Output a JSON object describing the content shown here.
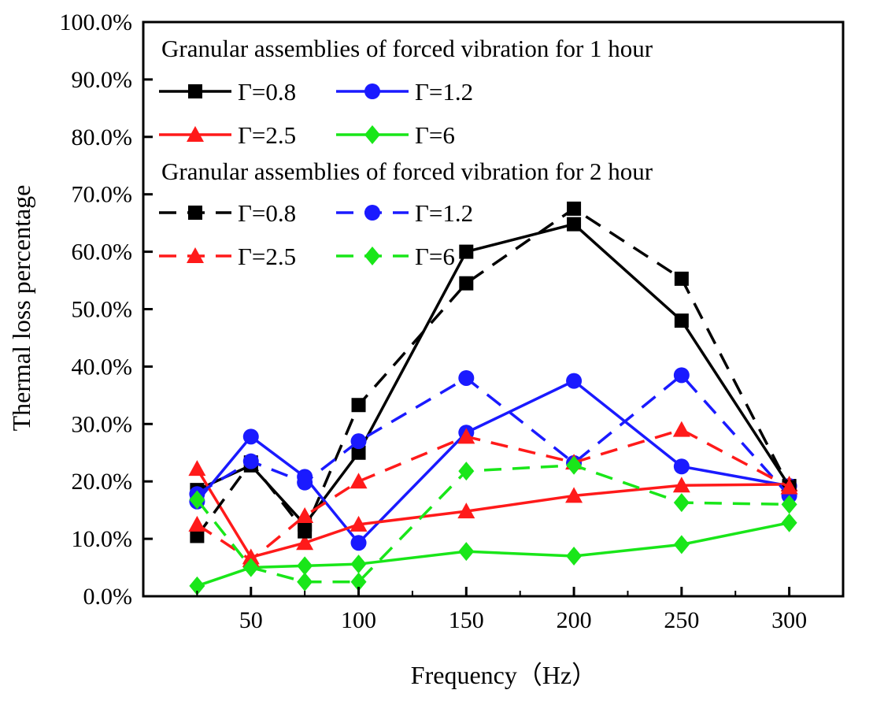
{
  "chart_data": {
    "type": "line",
    "xlabel": "Frequency（Hz）",
    "ylabel": "Thermal loss percentage",
    "x": [
      25,
      50,
      75,
      100,
      150,
      200,
      250,
      300
    ],
    "xlim": [
      0,
      325
    ],
    "ylim": [
      0,
      100
    ],
    "xticks": [
      50,
      100,
      150,
      200,
      250,
      300
    ],
    "xtick_labels": [
      "50",
      "100",
      "150",
      "200",
      "250",
      "300"
    ],
    "yticks": [
      0,
      10,
      20,
      30,
      40,
      50,
      60,
      70,
      80,
      90,
      100
    ],
    "ytick_labels": [
      "0.0%",
      "10.0%",
      "20.0%",
      "30.0%",
      "40.0%",
      "50.0%",
      "60.0%",
      "70.0%",
      "80.0%",
      "90.0%",
      "100.0%"
    ],
    "legend_groups": [
      {
        "heading": "Granular assemblies of forced vibration for 1 hour"
      },
      {
        "heading": "Granular assemblies of forced vibration for 2 hour"
      }
    ],
    "series": [
      {
        "name": "Γ=0.8",
        "group": 0,
        "dash": "solid",
        "color": "#000000",
        "marker": "square",
        "values": [
          18.5,
          22.8,
          12.5,
          25.0,
          60.0,
          64.8,
          48.0,
          19.2
        ]
      },
      {
        "name": "Γ=1.2",
        "group": 0,
        "dash": "solid",
        "color": "#1a1aff",
        "marker": "circle",
        "values": [
          16.5,
          27.8,
          20.8,
          9.3,
          28.5,
          37.5,
          22.6,
          19.2
        ]
      },
      {
        "name": "Γ=2.5",
        "group": 0,
        "dash": "solid",
        "color": "#ff1a1a",
        "marker": "triangle",
        "values": [
          22.2,
          6.8,
          9.3,
          12.5,
          14.8,
          17.5,
          19.3,
          19.5
        ]
      },
      {
        "name": "Γ=6",
        "group": 0,
        "dash": "solid",
        "color": "#19e619",
        "marker": "diamond",
        "values": [
          1.8,
          5.0,
          5.3,
          5.6,
          7.8,
          7.0,
          9.0,
          12.8
        ]
      },
      {
        "name": "Γ=0.8",
        "group": 1,
        "dash": "dashed",
        "color": "#000000",
        "marker": "square",
        "values": [
          10.5,
          23.3,
          11.3,
          33.3,
          54.5,
          67.5,
          55.3,
          19.0
        ]
      },
      {
        "name": "Γ=1.2",
        "group": 1,
        "dash": "dashed",
        "color": "#1a1aff",
        "marker": "circle",
        "values": [
          17.8,
          23.5,
          19.8,
          27.0,
          38.0,
          23.2,
          38.5,
          17.5
        ]
      },
      {
        "name": "Γ=2.5",
        "group": 1,
        "dash": "dashed",
        "color": "#ff1a1a",
        "marker": "triangle",
        "values": [
          12.5,
          6.3,
          14.0,
          20.0,
          27.8,
          23.3,
          29.0,
          19.0
        ]
      },
      {
        "name": "Γ=6",
        "group": 1,
        "dash": "dashed",
        "color": "#19e619",
        "marker": "diamond",
        "values": [
          16.8,
          5.0,
          2.5,
          2.5,
          21.8,
          22.8,
          16.3,
          16.0
        ]
      }
    ]
  }
}
